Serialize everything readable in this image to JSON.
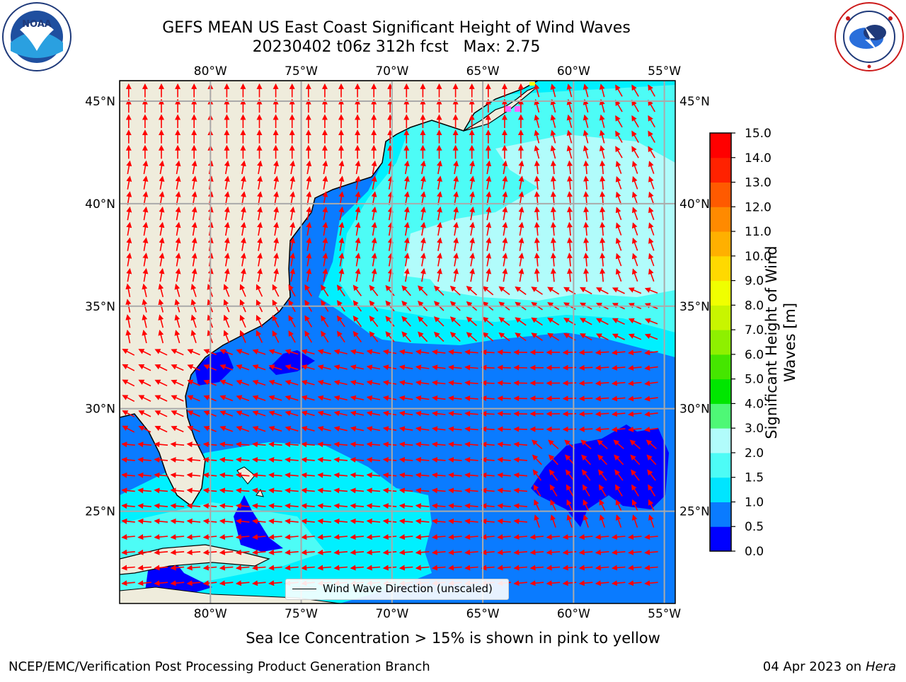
{
  "title": {
    "line1": "GEFS MEAN US East Coast Significant Height of Wind Waves",
    "line2": "20230402 t06z 312h fcst   Max: 2.75"
  },
  "axes": {
    "lon_labels": [
      "80°W",
      "75°W",
      "70°W",
      "65°W",
      "60°W",
      "55°W"
    ],
    "lat_labels": [
      "45°N",
      "40°N",
      "35°N",
      "30°N",
      "25°N"
    ],
    "lon_range": [
      -85,
      -54.4
    ],
    "lat_range": [
      20.5,
      46
    ],
    "grid": true
  },
  "colorbar": {
    "label_line1": "Significant Height of Wind",
    "label_line2": "Waves [m]",
    "ticks": [
      "0.0",
      "0.5",
      "1.0",
      "1.5",
      "2.0",
      "3.0",
      "4.0",
      "5.0",
      "6.0",
      "7.0",
      "8.0",
      "9.0",
      "10.0",
      "11.0",
      "12.0",
      "13.0",
      "14.0",
      "15.0"
    ],
    "colors": [
      "#0000ff",
      "#0a7bff",
      "#00e5ff",
      "#4dfcf6",
      "#b1fcfb",
      "#4ef876",
      "#00e600",
      "#45e600",
      "#8ef000",
      "#c8f500",
      "#f0ff00",
      "#ffd900",
      "#ffb000",
      "#ff8a00",
      "#ff5a00",
      "#ff2200",
      "#ff0000"
    ]
  },
  "legend": {
    "label": "Wind Wave Direction (unscaled)"
  },
  "logos": {
    "left": {
      "icon": "noaa-logo",
      "text": "NOAA"
    },
    "right": {
      "icon": "nws-logo",
      "text": "NATIONAL WEATHER SERVICE"
    }
  },
  "colors": {
    "land": "#efecdc",
    "ocean_0_05": "#0000ff",
    "ocean_05_10": "#0a7bff",
    "ocean_10_15": "#00f0ff",
    "ocean_15_20": "#4dfcf6",
    "ocean_20_30": "#b1fcfb",
    "arrow": "#ff0000",
    "grid": "#aaaaaa"
  },
  "footer": {
    "note": "Sea Ice Concentration > 15% is shown in pink to yellow",
    "left": "NCEP/EMC/Verification Post Processing Product Generation Branch",
    "date": "04 Apr 2023 on ",
    "machine": "Hera"
  }
}
